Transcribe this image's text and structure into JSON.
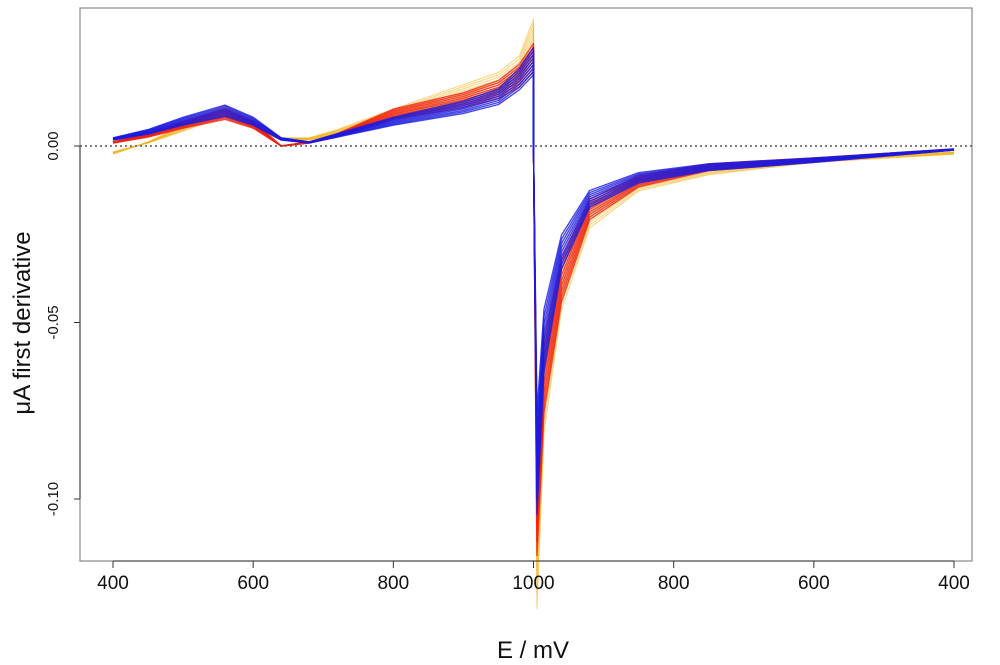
{
  "chart_data": {
    "type": "line",
    "title": "",
    "xlabel": "E / mV",
    "ylabel": "μA first derivative",
    "x_tick_labels": [
      "400",
      "600",
      "800",
      "1000",
      "800",
      "600",
      "400"
    ],
    "y_tick_labels": [
      "0.00",
      "-0.05",
      "-0.10"
    ],
    "y_ticks": [
      0.0,
      -0.05,
      -0.1
    ],
    "ylim": [
      -0.118,
      0.04
    ],
    "scan": "cyclic sweep 400 → 1000 → 400 mV",
    "reference_line": {
      "y": 0.0,
      "style": "dotted"
    },
    "grid": false,
    "legend": "none",
    "colors": {
      "group_orange": "#f2b21c",
      "group_red": "#f0200f",
      "group_blue": "#1a1ae0",
      "reference": "#555555"
    },
    "series": [
      {
        "color_group": "orange",
        "x_mV": [
          400,
          450,
          500,
          560,
          600,
          640,
          680,
          720,
          800,
          900,
          950,
          980,
          1000,
          1000,
          1005,
          1015,
          1040,
          1080,
          1150,
          1250,
          1400,
          1600
        ],
        "y": [
          -0.002,
          0.001,
          0.005,
          0.01,
          0.006,
          0.002,
          0.002,
          0.004,
          0.009,
          0.015,
          0.018,
          0.022,
          0.031,
          0.0,
          -0.113,
          -0.07,
          -0.04,
          -0.02,
          -0.011,
          -0.007,
          -0.004,
          -0.002
        ]
      },
      {
        "color_group": "red",
        "x_mV": [
          400,
          450,
          500,
          560,
          600,
          640,
          680,
          720,
          800,
          900,
          950,
          980,
          1000,
          1000,
          1005,
          1015,
          1040,
          1080,
          1150,
          1250,
          1400,
          1600
        ],
        "y": [
          0.001,
          0.003,
          0.006,
          0.009,
          0.006,
          0.0,
          0.001,
          0.003,
          0.009,
          0.013,
          0.016,
          0.02,
          0.025,
          0.0,
          -0.1,
          -0.065,
          -0.038,
          -0.018,
          -0.01,
          -0.006,
          -0.004,
          -0.001
        ]
      },
      {
        "color_group": "blue",
        "x_mV": [
          400,
          450,
          500,
          560,
          600,
          640,
          680,
          720,
          800,
          900,
          950,
          980,
          1000,
          1000,
          1005,
          1015,
          1040,
          1080,
          1150,
          1250,
          1400,
          1600
        ],
        "y": [
          0.002,
          0.004,
          0.007,
          0.01,
          0.007,
          0.002,
          0.001,
          0.003,
          0.007,
          0.011,
          0.014,
          0.019,
          0.024,
          0.0,
          -0.09,
          -0.055,
          -0.03,
          -0.015,
          -0.009,
          -0.006,
          -0.004,
          -0.001
        ]
      }
    ]
  }
}
